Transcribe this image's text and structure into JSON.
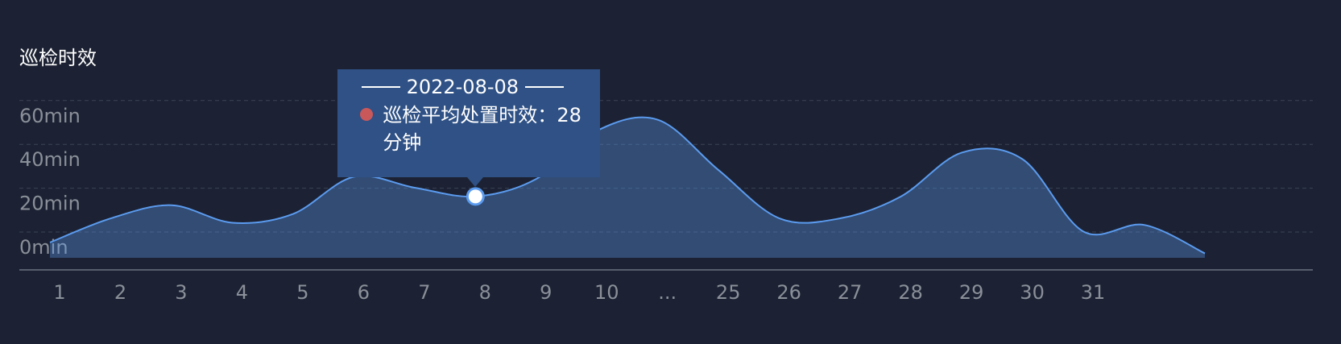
{
  "chart_data": {
    "type": "line",
    "title": "巡检时效",
    "categories": [
      "1",
      "2",
      "3",
      "4",
      "5",
      "6",
      "7",
      "8",
      "9",
      "10",
      "...",
      "25",
      "26",
      "27",
      "28",
      "29",
      "30",
      "31",
      null,
      null
    ],
    "series": [
      {
        "name": "巡检平均处置时效",
        "color": "#5b9bef",
        "values": [
          7,
          18,
          24,
          16,
          20,
          37,
          32,
          28,
          36,
          58,
          63,
          40,
          18,
          18,
          28,
          48,
          45,
          12,
          15,
          2
        ]
      }
    ],
    "ylim": [
      0,
      70
    ],
    "yticks": [
      {
        "value": 0,
        "label": "0min"
      },
      {
        "value": 20,
        "label": "20min"
      },
      {
        "value": 40,
        "label": "40min"
      },
      {
        "value": 60,
        "label": "60min"
      }
    ],
    "grid": true,
    "tooltip": {
      "date": "2022-08-08",
      "label": "巡检平均处置时效：",
      "index": 7,
      "unit": "分钟"
    }
  }
}
